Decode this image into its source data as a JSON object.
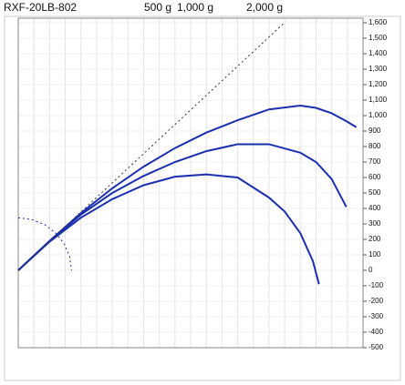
{
  "chart_data": {
    "type": "line",
    "title": "RXF-20LB-802",
    "series": [
      {
        "name": "500 g",
        "color": "#1a2fb0",
        "dash": false,
        "x": [
          0,
          200,
          400,
          600,
          800,
          1000,
          1200,
          1400,
          1600,
          1700,
          1800,
          1880,
          1919
        ],
        "values": [
          0,
          185,
          340,
          460,
          550,
          605,
          620,
          600,
          470,
          380,
          240,
          60,
          -90
        ]
      },
      {
        "name": "1,000 g",
        "color": "#1a2fb0",
        "dash": false,
        "x": [
          0,
          200,
          400,
          600,
          800,
          1000,
          1200,
          1400,
          1600,
          1800,
          1900,
          2000,
          2093
        ],
        "values": [
          0,
          190,
          360,
          500,
          610,
          700,
          770,
          815,
          815,
          760,
          700,
          590,
          410
        ]
      },
      {
        "name": "2,000 g",
        "color": "#1a2fb0",
        "dash": false,
        "x": [
          0,
          200,
          400,
          600,
          800,
          1000,
          1200,
          1400,
          1600,
          1800,
          1900,
          2000,
          2100,
          2157
        ],
        "values": [
          0,
          190,
          370,
          530,
          670,
          790,
          890,
          970,
          1040,
          1065,
          1050,
          1015,
          960,
          925
        ]
      },
      {
        "color": "#333333",
        "dash": true,
        "x": [
          0,
          1698
        ],
        "values": [
          0,
          1600
        ]
      },
      {
        "color": "#1a2fb0",
        "dash": true,
        "x": [
          0,
          88,
          170,
          240,
          294,
          328,
          340
        ],
        "values": [
          340,
          328,
          294,
          240,
          170,
          88,
          0
        ]
      }
    ],
    "xlim": [
      0,
      2200
    ],
    "xticks": [
      0,
      100,
      200,
      300,
      400,
      500,
      600,
      700,
      800,
      900,
      1000,
      1100,
      1200,
      1300,
      1400,
      1500,
      1600,
      1700,
      1800,
      1900,
      2000,
      2100,
      2200
    ],
    "ylim": [
      -500,
      1600
    ],
    "yticks": [
      -500,
      -400,
      -300,
      -200,
      -100,
      0,
      100,
      200,
      300,
      400,
      500,
      600,
      700,
      800,
      900,
      {
        "value": 1000,
        "label": "1,000"
      },
      {
        "value": 1100,
        "label": "1,100"
      },
      {
        "value": 1200,
        "label": "1,200"
      },
      {
        "value": 1300,
        "label": "1,300"
      },
      {
        "value": 1400,
        "label": "1,400"
      },
      {
        "value": 1500,
        "label": "1,500"
      },
      {
        "value": 1600,
        "label": "1,600"
      }
    ],
    "grid": true,
    "y_axis_side": "right"
  }
}
